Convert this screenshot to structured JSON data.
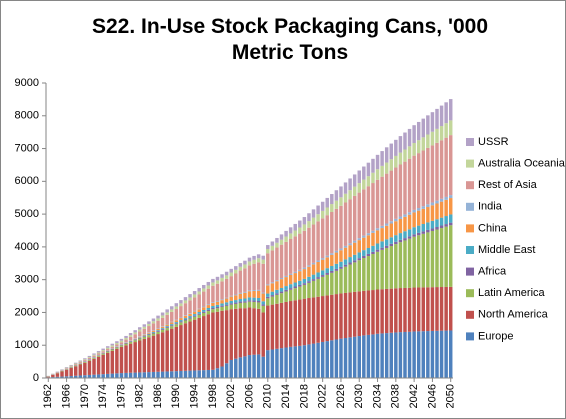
{
  "chart_data": {
    "type": "stacked_bar",
    "title": "S22. In-Use Stock Packaging Cans, '000 Metric Tons",
    "categories": [
      "1962",
      null,
      null,
      null,
      "1966",
      null,
      null,
      null,
      "1970",
      null,
      null,
      null,
      "1974",
      null,
      null,
      null,
      "1978",
      null,
      null,
      null,
      "1982",
      null,
      null,
      null,
      "1986",
      null,
      null,
      null,
      "1990",
      null,
      null,
      null,
      "1994",
      null,
      null,
      null,
      "1998",
      null,
      null,
      null,
      "2002",
      null,
      null,
      null,
      "2006",
      null,
      null,
      null,
      "2010",
      null,
      null,
      null,
      "2014",
      null,
      null,
      null,
      "2018",
      null,
      null,
      null,
      "2022",
      null,
      null,
      null,
      "2026",
      null,
      null,
      null,
      "2030",
      null,
      null,
      null,
      "2034",
      null,
      null,
      null,
      "2038",
      null,
      null,
      null,
      "2042",
      null,
      null,
      null,
      "2046",
      null,
      null,
      null,
      "2050"
    ],
    "ylim": [
      0,
      9000
    ],
    "yticks": [
      0,
      1000,
      2000,
      3000,
      4000,
      5000,
      6000,
      7000,
      8000,
      9000
    ],
    "grid": false,
    "legend": "right",
    "series": [
      {
        "name": "Europe",
        "color": "#4f81bd",
        "values": [
          20,
          28,
          36,
          44,
          52,
          60,
          69,
          77,
          85,
          93,
          101,
          109,
          117,
          125,
          134,
          142,
          150,
          155,
          160,
          165,
          170,
          175,
          180,
          185,
          190,
          195,
          200,
          205,
          210,
          215,
          220,
          225,
          230,
          235,
          240,
          245,
          250,
          300,
          350,
          450,
          550,
          590,
          630,
          660,
          700,
          710,
          720,
          650,
          850,
          870,
          890,
          910,
          930,
          950,
          965,
          980,
          1000,
          1025,
          1050,
          1075,
          1100,
          1125,
          1150,
          1175,
          1200,
          1220,
          1240,
          1260,
          1280,
          1300,
          1315,
          1330,
          1350,
          1360,
          1370,
          1380,
          1390,
          1400,
          1405,
          1410,
          1420,
          1424,
          1428,
          1432,
          1436,
          1440,
          1444,
          1447,
          1450
        ]
      },
      {
        "name": "North America",
        "color": "#c0504d",
        "values": [
          20,
          65,
          110,
          155,
          200,
          245,
          290,
          335,
          380,
          432,
          485,
          537,
          590,
          642,
          695,
          747,
          800,
          844,
          888,
          931,
          975,
          1019,
          1063,
          1106,
          1150,
          1200,
          1250,
          1300,
          1350,
          1400,
          1450,
          1500,
          1550,
          1600,
          1650,
          1700,
          1750,
          1720,
          1700,
          1620,
          1550,
          1520,
          1500,
          1470,
          1450,
          1420,
          1390,
          1350,
          1360,
          1368,
          1375,
          1383,
          1390,
          1398,
          1405,
          1413,
          1420,
          1415,
          1410,
          1405,
          1400,
          1395,
          1390,
          1385,
          1380,
          1376,
          1372,
          1368,
          1364,
          1360,
          1356,
          1353,
          1350,
          1349,
          1347,
          1346,
          1345,
          1344,
          1342,
          1341,
          1340,
          1339,
          1337,
          1336,
          1335,
          1334,
          1332,
          1331,
          1330
        ]
      },
      {
        "name": "Latin America",
        "color": "#9bbb59",
        "values": [
          5,
          8,
          10,
          13,
          16,
          18,
          21,
          24,
          26,
          29,
          31,
          34,
          37,
          39,
          42,
          45,
          47,
          50,
          53,
          55,
          58,
          60,
          63,
          66,
          68,
          71,
          74,
          76,
          79,
          82,
          84,
          87,
          89,
          92,
          95,
          97,
          100,
          110,
          120,
          130,
          140,
          150,
          160,
          170,
          180,
          190,
          195,
          200,
          220,
          245,
          270,
          295,
          320,
          345,
          370,
          395,
          420,
          461,
          503,
          544,
          585,
          626,
          668,
          709,
          750,
          800,
          850,
          900,
          950,
          1000,
          1050,
          1100,
          1150,
          1200,
          1250,
          1300,
          1350,
          1400,
          1450,
          1500,
          1550,
          1591,
          1633,
          1674,
          1715,
          1756,
          1798,
          1839,
          1880
        ]
      },
      {
        "name": "Africa",
        "color": "#8064a2",
        "values": [
          5,
          6,
          7,
          8,
          8,
          9,
          10,
          11,
          12,
          13,
          14,
          14,
          15,
          16,
          17,
          18,
          19,
          19,
          20,
          21,
          22,
          23,
          24,
          25,
          25,
          26,
          27,
          28,
          29,
          30,
          31,
          31,
          32,
          33,
          34,
          35,
          36,
          36,
          37,
          38,
          39,
          40,
          41,
          42,
          42,
          43,
          44,
          45,
          46,
          47,
          47,
          48,
          49,
          50,
          51,
          52,
          53,
          53,
          54,
          55,
          56,
          57,
          58,
          59,
          59,
          60,
          61,
          62,
          63,
          64,
          64,
          65,
          66,
          67,
          68,
          69,
          70,
          70,
          71,
          72,
          73,
          74,
          75,
          76,
          76,
          77,
          78,
          79,
          80
        ]
      },
      {
        "name": "Middle East",
        "color": "#4bacc6",
        "values": [
          2,
          2,
          2,
          2,
          2,
          2,
          2,
          2,
          2,
          2,
          2,
          2,
          2,
          2,
          2,
          2,
          2,
          5,
          8,
          11,
          14,
          17,
          20,
          23,
          26,
          29,
          32,
          35,
          38,
          41,
          44,
          47,
          50,
          53,
          56,
          59,
          62,
          65,
          68,
          71,
          74,
          77,
          80,
          83,
          86,
          89,
          92,
          96,
          100,
          104,
          108,
          111,
          115,
          119,
          122,
          126,
          130,
          133,
          137,
          141,
          144,
          148,
          152,
          155,
          159,
          163,
          166,
          170,
          174,
          177,
          181,
          185,
          188,
          192,
          196,
          199,
          203,
          207,
          210,
          214,
          218,
          221,
          225,
          229,
          232,
          236,
          240,
          245,
          250
        ]
      },
      {
        "name": "China",
        "color": "#f79646",
        "values": [
          1,
          1,
          1,
          1,
          1,
          1,
          1,
          1,
          1,
          1,
          1,
          1,
          1,
          1,
          1,
          1,
          1,
          5,
          10,
          14,
          19,
          24,
          28,
          33,
          38,
          42,
          47,
          52,
          56,
          61,
          66,
          70,
          75,
          80,
          84,
          89,
          94,
          97,
          100,
          115,
          130,
          145,
          160,
          175,
          190,
          205,
          220,
          235,
          250,
          256,
          263,
          269,
          275,
          281,
          288,
          294,
          300,
          306,
          313,
          319,
          325,
          331,
          338,
          344,
          350,
          356,
          363,
          369,
          375,
          381,
          388,
          394,
          400,
          406,
          413,
          419,
          425,
          431,
          438,
          444,
          450,
          456,
          463,
          469,
          475,
          481,
          488,
          494,
          500
        ]
      },
      {
        "name": "India",
        "color": "#95b3d7",
        "values": [
          2,
          3,
          3,
          4,
          4,
          5,
          5,
          6,
          7,
          7,
          8,
          8,
          9,
          9,
          10,
          11,
          11,
          12,
          12,
          13,
          14,
          14,
          15,
          15,
          16,
          16,
          17,
          18,
          18,
          19,
          19,
          20,
          21,
          21,
          22,
          22,
          23,
          23,
          24,
          25,
          25,
          26,
          26,
          27,
          28,
          28,
          29,
          29,
          30,
          32,
          33,
          35,
          36,
          38,
          39,
          41,
          42,
          44,
          45,
          47,
          48,
          50,
          51,
          53,
          54,
          56,
          57,
          59,
          60,
          62,
          63,
          65,
          66,
          68,
          69,
          71,
          72,
          74,
          75,
          77,
          78,
          80,
          81,
          83,
          84,
          86,
          87,
          89,
          90
        ]
      },
      {
        "name": "Rest of Asia",
        "color": "#d99694",
        "values": [
          5,
          8,
          12,
          15,
          19,
          22,
          26,
          29,
          33,
          36,
          39,
          43,
          46,
          50,
          53,
          57,
          60,
          82,
          104,
          126,
          148,
          170,
          192,
          214,
          236,
          258,
          280,
          302,
          324,
          346,
          368,
          390,
          412,
          434,
          456,
          478,
          500,
          525,
          550,
          575,
          600,
          640,
          680,
          720,
          760,
          800,
          840,
          880,
          950,
          972,
          994,
          1016,
          1038,
          1060,
          1082,
          1104,
          1126,
          1148,
          1170,
          1192,
          1214,
          1236,
          1258,
          1280,
          1302,
          1324,
          1346,
          1368,
          1390,
          1412,
          1434,
          1456,
          1478,
          1500,
          1522,
          1544,
          1566,
          1588,
          1610,
          1632,
          1654,
          1676,
          1698,
          1720,
          1742,
          1764,
          1786,
          1808,
          1830
        ]
      },
      {
        "name": "Australia Oceania",
        "color": "#c3d69b",
        "values": [
          3,
          6,
          8,
          11,
          14,
          16,
          19,
          22,
          25,
          27,
          30,
          33,
          35,
          38,
          41,
          44,
          46,
          49,
          52,
          54,
          57,
          60,
          63,
          65,
          68,
          71,
          73,
          76,
          79,
          82,
          84,
          87,
          90,
          92,
          95,
          98,
          100,
          102,
          105,
          107,
          110,
          112,
          115,
          117,
          120,
          122,
          125,
          127,
          130,
          138,
          146,
          154,
          162,
          170,
          178,
          186,
          194,
          202,
          210,
          218,
          226,
          234,
          242,
          250,
          258,
          266,
          274,
          282,
          290,
          298,
          306,
          314,
          322,
          330,
          338,
          346,
          354,
          362,
          370,
          378,
          386,
          394,
          402,
          410,
          418,
          426,
          434,
          442,
          450
        ]
      },
      {
        "name": "USSR",
        "color": "#b3a2c7",
        "values": [
          3,
          6,
          10,
          13,
          17,
          20,
          24,
          27,
          31,
          34,
          38,
          41,
          45,
          48,
          51,
          55,
          58,
          62,
          65,
          69,
          72,
          76,
          79,
          83,
          86,
          90,
          93,
          97,
          100,
          101,
          102,
          103,
          104,
          105,
          106,
          107,
          108,
          109,
          110,
          111,
          112,
          113,
          114,
          115,
          116,
          117,
          118,
          119,
          120,
          133,
          146,
          160,
          173,
          186,
          200,
          213,
          226,
          239,
          253,
          266,
          279,
          292,
          306,
          319,
          332,
          345,
          359,
          372,
          385,
          398,
          412,
          425,
          438,
          451,
          465,
          478,
          491,
          504,
          518,
          531,
          544,
          557,
          571,
          584,
          597,
          610,
          624,
          637,
          650
        ]
      }
    ]
  }
}
